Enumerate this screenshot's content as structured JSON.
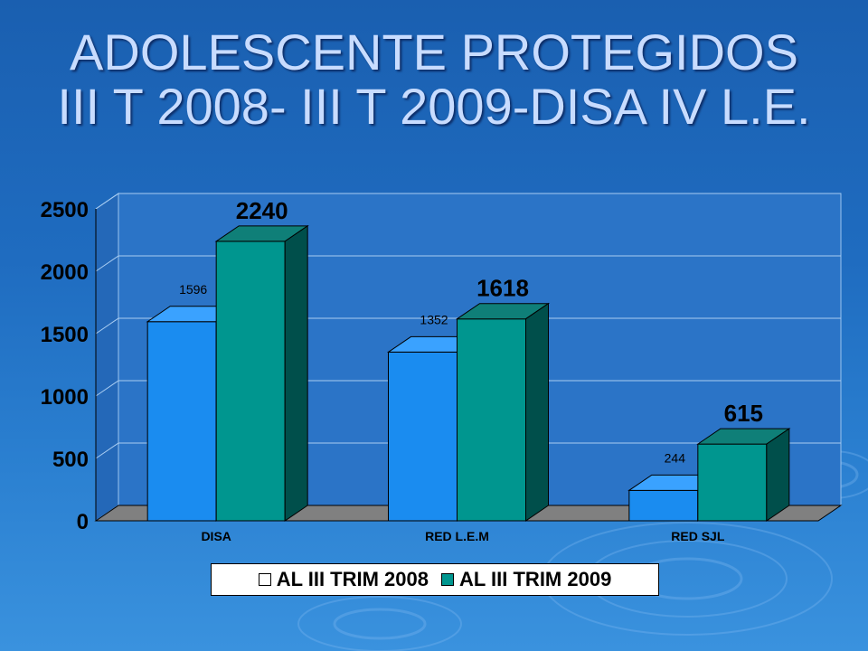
{
  "slide": {
    "title_line1": "ADOLESCENTE PROTEGIDOS",
    "title_line2": "III T 2008- III T 2009-DISA IV L.E."
  },
  "colors": {
    "background": "#1f6cc0",
    "title_text": "#c8dcff",
    "series_2008": "#1a8cf0",
    "series_2009": "#00968f",
    "floor": "#808080"
  },
  "chart_data": {
    "type": "bar",
    "categories": [
      "DISA",
      "RED L.E.M",
      "RED SJL"
    ],
    "series": [
      {
        "name": "AL III TRIM 2008",
        "values": [
          1596,
          1352,
          244
        ]
      },
      {
        "name": "AL III TRIM 2009",
        "values": [
          2240,
          1618,
          615
        ]
      }
    ],
    "ylim": [
      0,
      2500
    ],
    "yticks": [
      0,
      500,
      1000,
      1500,
      2000,
      2500
    ],
    "grid": true,
    "legend_position": "bottom",
    "style": "3d-clustered-column"
  }
}
